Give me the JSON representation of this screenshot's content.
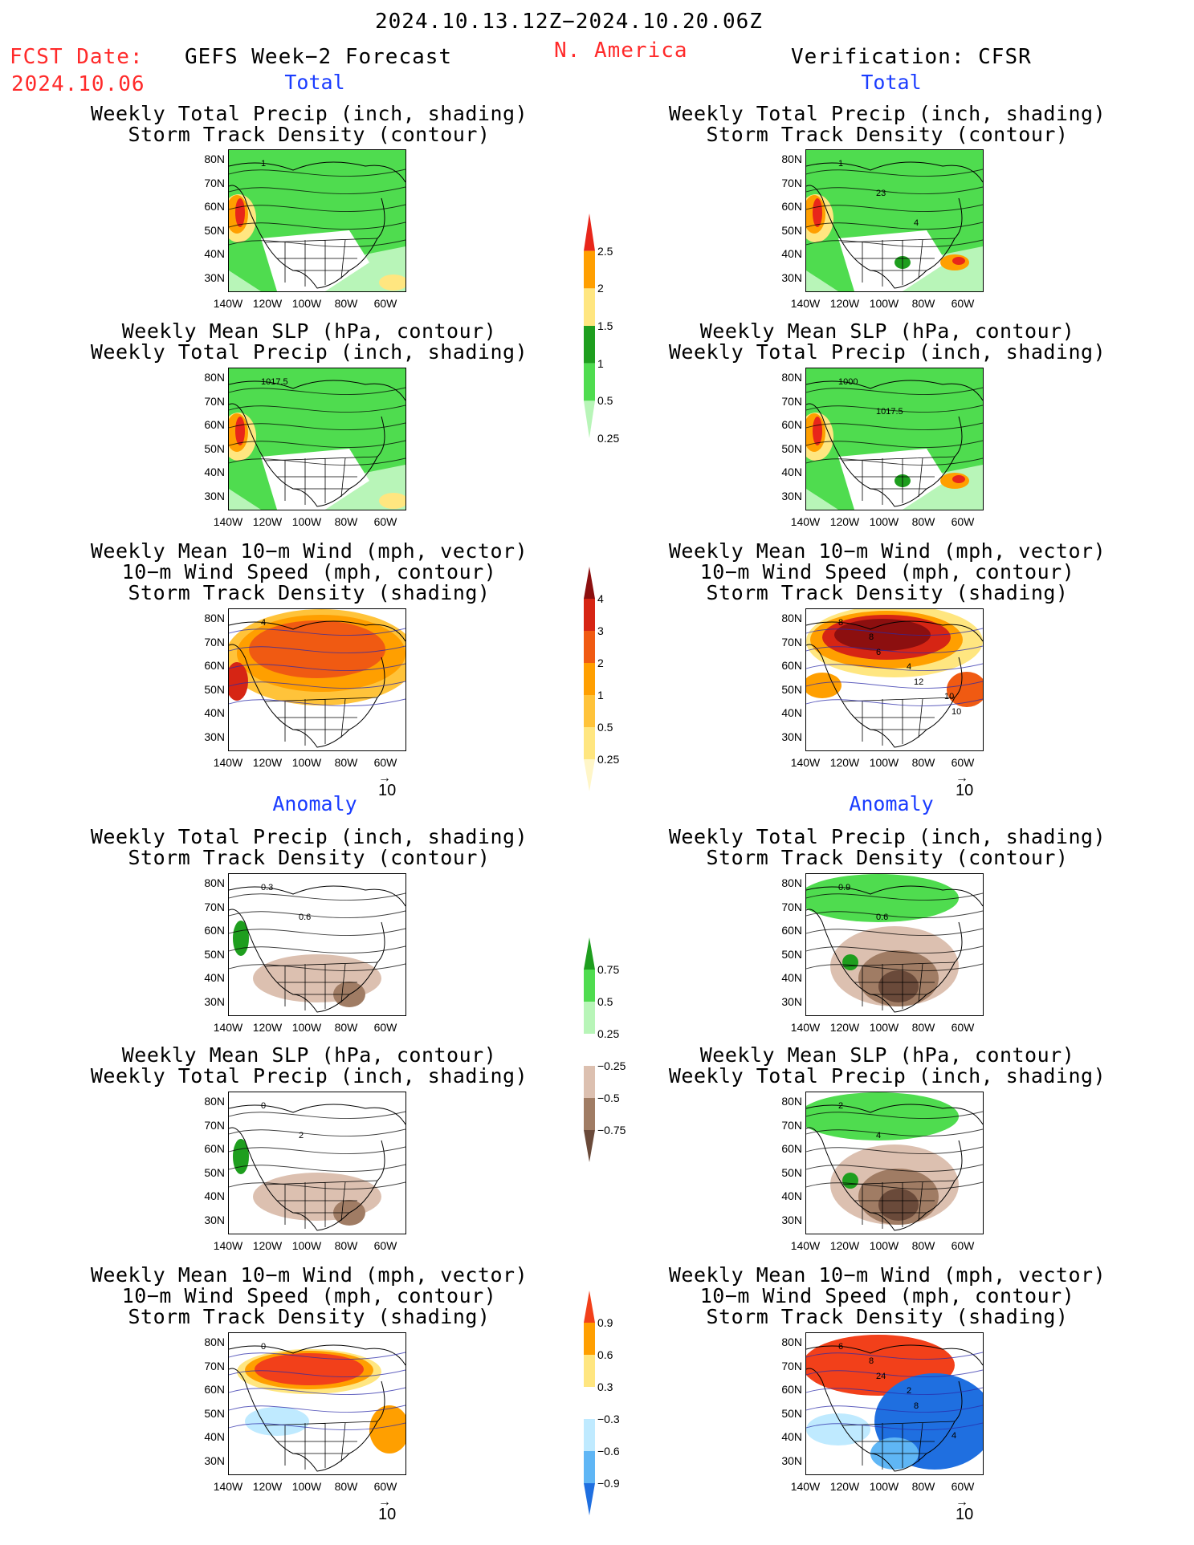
{
  "header": {
    "period": "2024.10.13.12Z−2024.10.20.06Z",
    "fcst_label": "FCST Date:",
    "fcst_date": "2024.10.06",
    "model": "GEFS Week−2 Forecast",
    "region": "N. America",
    "verification": "Verification: CFSR"
  },
  "sections": {
    "total": "Total",
    "anomaly": "Anomaly"
  },
  "titles": {
    "precip_track": [
      "Weekly Total Precip (inch, shading)",
      "Storm Track Density (contour)"
    ],
    "slp_precip": [
      "Weekly Mean SLP (hPa, contour)",
      "Weekly Total Precip (inch, shading)"
    ],
    "wind_track": [
      "Weekly Mean 10−m Wind (mph, vector)",
      "10−m Wind Speed (mph, contour)",
      "Storm Track Density (shading)"
    ]
  },
  "axes": {
    "lat": [
      "80N",
      "70N",
      "60N",
      "50N",
      "40N",
      "30N"
    ],
    "lon": [
      "140W",
      "120W",
      "100W",
      "80W",
      "60W"
    ]
  },
  "vector_ref": "10",
  "colorbars": {
    "total_precip": {
      "labels": [
        "2.5",
        "2",
        "1.5",
        "1",
        "0.5",
        "0.25"
      ],
      "colors": [
        "#e8261a",
        "#ff9f00",
        "#ffe680",
        "#1e9e1e",
        "#4fdc4f",
        "#b8f5b8"
      ]
    },
    "track_density": {
      "labels": [
        "4",
        "3",
        "2",
        "1",
        "0.5",
        "0.25"
      ],
      "colors": [
        "#8c0f0f",
        "#d62514",
        "#f05a12",
        "#ff9f00",
        "#ffc33a",
        "#ffe680",
        "#fff6c8"
      ]
    },
    "precip_anom": {
      "labels": [
        "0.75",
        "0.5",
        "0.25",
        "−0.25",
        "−0.5",
        "−0.75"
      ],
      "colors": [
        "#1e9e1e",
        "#4fdc4f",
        "#b8f5b8",
        "#ffffff",
        "#dcc0b0",
        "#a07c64",
        "#6a4a3a"
      ]
    },
    "track_anom": {
      "labels": [
        "0.9",
        "0.6",
        "0.3",
        "−0.3",
        "−0.6",
        "−0.9"
      ],
      "colors": [
        "#f2401a",
        "#ff9f00",
        "#ffe680",
        "#ffffff",
        "#bfeaff",
        "#5fb6f5",
        "#1f6fe0"
      ]
    }
  },
  "map_labels": {
    "fc_precip_total": [
      "1"
    ],
    "obs_precip_total": [
      "1",
      "23",
      "4"
    ],
    "fc_slp_total": [
      "1017.5"
    ],
    "obs_slp_total": [
      "1000",
      "1017.5"
    ],
    "fc_wind_total": [
      "4"
    ],
    "obs_wind_total": [
      "8",
      "6",
      "12",
      "10",
      "8",
      "4",
      "10"
    ],
    "fc_precip_anom": [
      "0.3",
      "0.6"
    ],
    "obs_precip_anom": [
      "0.9",
      "0.6"
    ],
    "fc_slp_anom": [
      "0",
      "2"
    ],
    "obs_slp_anom": [
      "2",
      "4"
    ],
    "fc_wind_anom": [
      "0"
    ],
    "obs_wind_anom": [
      "6",
      "24",
      "8",
      "4",
      "8",
      "2"
    ]
  }
}
